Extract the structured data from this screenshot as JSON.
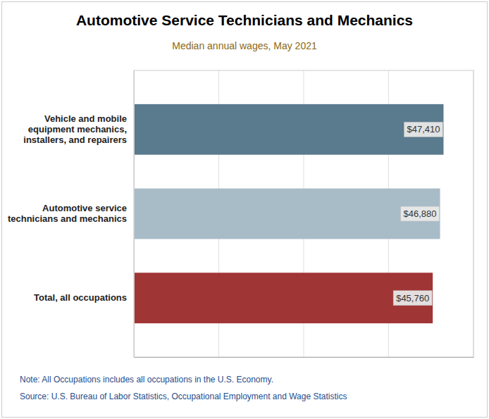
{
  "chart_data": {
    "type": "bar",
    "orientation": "horizontal",
    "title": "Automotive Service Technicians and Mechanics",
    "subtitle": "Median annual wages, May 2021",
    "categories": [
      "Total, all occupations",
      "Automotive service\ntechnicians and mechanics",
      "Vehicle and mobile\nequipment mechanics,\ninstallers, and repairers"
    ],
    "values": [
      45760,
      46880,
      47410
    ],
    "value_labels": [
      "$45,760",
      "$46,880",
      "$47,410"
    ],
    "data_labels": true,
    "colors": [
      "#A03535",
      "#A8BCC8",
      "#5A7A8E"
    ],
    "xlim": [
      0,
      52000
    ],
    "xticks": [
      0,
      13000,
      26000,
      39000,
      52000
    ],
    "tick_labels": "y",
    "grid": true,
    "annotations": [
      "Note: All Occupations includes all occupations in the U.S. Economy.",
      "Source: U.S. Bureau of Labor Statistics, Occupational Employment and Wage Statistics"
    ]
  }
}
